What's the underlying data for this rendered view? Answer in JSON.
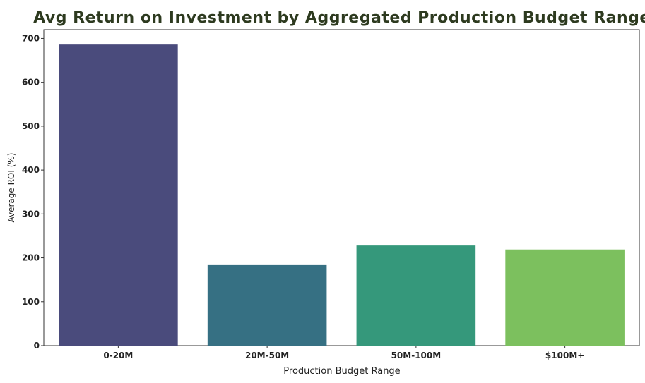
{
  "chart_data": {
    "type": "bar",
    "title": "Avg Return on Investment by Aggregated Production Budget Range",
    "xlabel": "Production Budget Range",
    "ylabel": "Average ROI (%)",
    "categories": [
      "0-20M",
      "20M-50M",
      "50M-100M",
      "$100M+"
    ],
    "values": [
      686,
      185,
      228,
      219
    ],
    "ylim": [
      0,
      720
    ],
    "yticks": [
      0,
      100,
      200,
      300,
      400,
      500,
      600,
      700
    ],
    "colors": [
      "#4a4b7c",
      "#367083",
      "#35987b",
      "#7cc05e"
    ],
    "grid": false
  }
}
